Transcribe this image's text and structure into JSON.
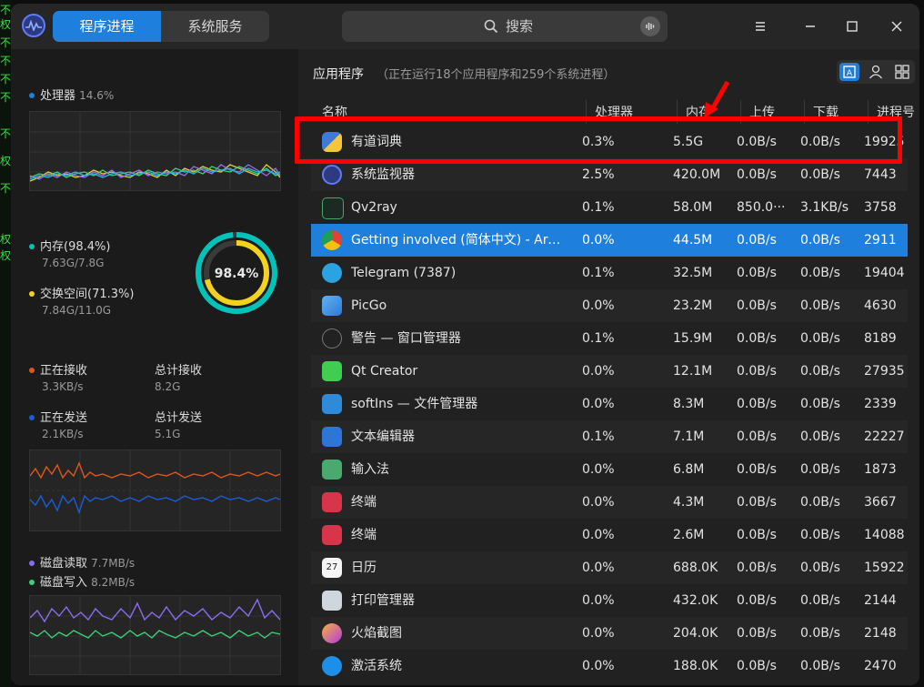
{
  "window": {
    "logo_icon": "monitor-logo-icon"
  },
  "tabs": [
    {
      "label": "程序进程",
      "active": true
    },
    {
      "label": "系统服务",
      "active": false
    }
  ],
  "search": {
    "placeholder": "搜索"
  },
  "sidebar": {
    "cpu": {
      "label": "处理器",
      "value": "14.6%"
    },
    "memory": {
      "label": "内存(98.4%)",
      "detail": "7.63G/7.8G",
      "gauge_label": "98.4%",
      "gauge_fraction": 0.984
    },
    "swap": {
      "label": "交换空间(71.3%)",
      "detail": "7.84G/11.0G",
      "fraction": 0.713
    },
    "network": {
      "recv_label": "正在接收",
      "recv_value": "3.3KB/s",
      "total_recv_label": "总计接收",
      "total_recv_value": "8.2G",
      "send_label": "正在发送",
      "send_value": "2.1KB/s",
      "total_send_label": "总计发送",
      "total_send_value": "5.1G"
    },
    "disk": {
      "read_label": "磁盘读取",
      "read_value": "7.7MB/s",
      "write_label": "磁盘写入",
      "write_value": "8.2MB/s"
    },
    "colors": {
      "cpu": "#1e7fdc",
      "memory": "#00c2b8",
      "swap": "#f3d21f",
      "recv": "#e0561d",
      "send": "#1e5cd6",
      "disk_read": "#8b6cf0",
      "disk_write": "#3bcf76"
    }
  },
  "main": {
    "title": "应用程序",
    "subtitle": "（正在运行18个应用程序和259个系统进程）",
    "columns": {
      "name": "名称",
      "cpu": "处理器",
      "mem": "内存",
      "up": "上传",
      "down": "下载",
      "pid": "进程号"
    },
    "rows": [
      {
        "icon": "python-icon",
        "name": "有道词典",
        "cpu": "0.3%",
        "mem": "5.5G",
        "up": "0.0B/s",
        "down": "0.0B/s",
        "pid": "19925"
      },
      {
        "icon": "system-monitor-icon",
        "name": "系统监视器",
        "cpu": "2.5%",
        "mem": "420.0M",
        "up": "0.0B/s",
        "down": "0.0B/s",
        "pid": "7443"
      },
      {
        "icon": "qv2ray-icon",
        "name": "Qv2ray",
        "cpu": "0.1%",
        "mem": "58.0M",
        "up": "850.0···",
        "down": "3.1KB/s",
        "pid": "3758"
      },
      {
        "icon": "chrome-icon",
        "name": "Getting involved (简体中文) - Arch···",
        "cpu": "0.0%",
        "mem": "44.5M",
        "up": "0.0B/s",
        "down": "0.0B/s",
        "pid": "2911"
      },
      {
        "icon": "telegram-icon",
        "name": "Telegram (7387)",
        "cpu": "0.1%",
        "mem": "32.5M",
        "up": "0.0B/s",
        "down": "0.0B/s",
        "pid": "19404"
      },
      {
        "icon": "picgo-icon",
        "name": "PicGo",
        "cpu": "0.0%",
        "mem": "23.2M",
        "up": "0.0B/s",
        "down": "0.0B/s",
        "pid": "4630"
      },
      {
        "icon": "warning-icon",
        "name": "警告 — 窗口管理器",
        "cpu": "0.1%",
        "mem": "15.9M",
        "up": "0.0B/s",
        "down": "0.0B/s",
        "pid": "8189"
      },
      {
        "icon": "qt-creator-icon",
        "name": "Qt Creator",
        "cpu": "0.0%",
        "mem": "12.1M",
        "up": "0.0B/s",
        "down": "0.0B/s",
        "pid": "27935"
      },
      {
        "icon": "file-manager-icon",
        "name": "softIns — 文件管理器",
        "cpu": "0.0%",
        "mem": "8.3M",
        "up": "0.0B/s",
        "down": "0.0B/s",
        "pid": "2339"
      },
      {
        "icon": "text-editor-icon",
        "name": "文本编辑器",
        "cpu": "0.1%",
        "mem": "7.1M",
        "up": "0.0B/s",
        "down": "0.0B/s",
        "pid": "22227"
      },
      {
        "icon": "input-method-icon",
        "name": "输入法",
        "cpu": "0.0%",
        "mem": "6.8M",
        "up": "0.0B/s",
        "down": "0.0B/s",
        "pid": "1873"
      },
      {
        "icon": "terminal-icon",
        "name": "终端",
        "cpu": "0.0%",
        "mem": "4.3M",
        "up": "0.0B/s",
        "down": "0.0B/s",
        "pid": "3667"
      },
      {
        "icon": "terminal-icon",
        "name": "终端",
        "cpu": "0.0%",
        "mem": "2.6M",
        "up": "0.0B/s",
        "down": "0.0B/s",
        "pid": "14088"
      },
      {
        "icon": "calendar-icon",
        "name": "日历",
        "cpu": "0.0%",
        "mem": "688.0K",
        "up": "0.0B/s",
        "down": "0.0B/s",
        "pid": "15922",
        "icon_text": "27"
      },
      {
        "icon": "printer-icon",
        "name": "打印管理器",
        "cpu": "0.0%",
        "mem": "432.0K",
        "up": "0.0B/s",
        "down": "0.0B/s",
        "pid": "2144"
      },
      {
        "icon": "flameshot-icon",
        "name": "火焰截图",
        "cpu": "0.0%",
        "mem": "204.0K",
        "up": "0.0B/s",
        "down": "0.0B/s",
        "pid": "2148"
      },
      {
        "icon": "activation-icon",
        "name": "激活系统",
        "cpu": "0.0%",
        "mem": "188.0K",
        "up": "0.0B/s",
        "down": "0.0B/s",
        "pid": "2470"
      }
    ],
    "selected_index": 3
  }
}
